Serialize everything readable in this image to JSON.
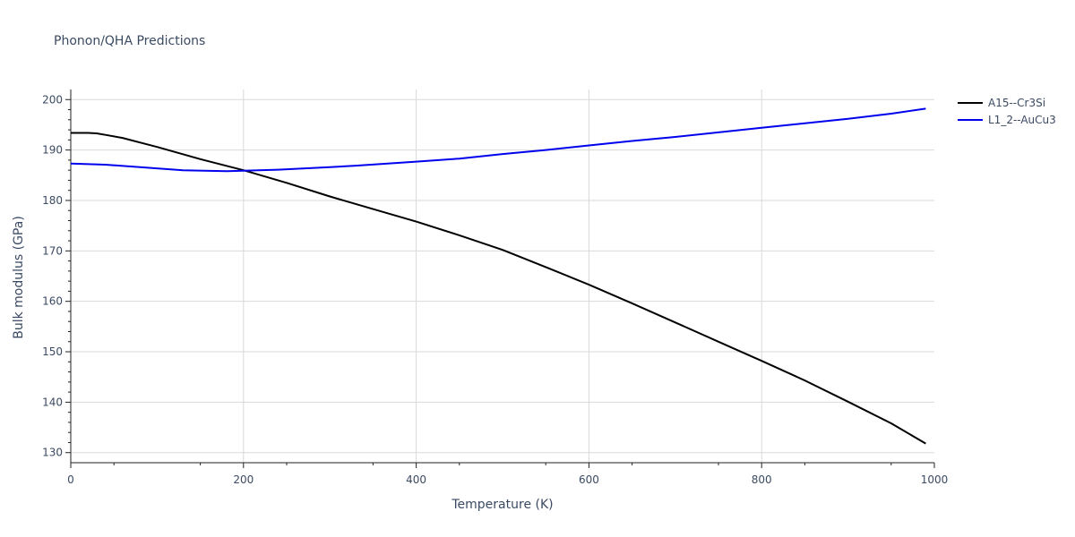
{
  "chart_data": {
    "type": "line",
    "title": "Phonon/QHA Predictions",
    "xlabel": "Temperature (K)",
    "ylabel": "Bulk modulus (GPa)",
    "xlim": [
      0,
      1000
    ],
    "ylim": [
      128,
      202
    ],
    "xticks": [
      0,
      200,
      400,
      600,
      800,
      1000
    ],
    "yticks": [
      130,
      140,
      150,
      160,
      170,
      180,
      190,
      200
    ],
    "grid": true,
    "legend_position": "top-right",
    "series": [
      {
        "name": "A15--Cr3Si",
        "color": "#000000",
        "x": [
          0,
          20,
          30,
          40,
          60,
          80,
          100,
          150,
          200,
          250,
          300,
          350,
          400,
          450,
          500,
          550,
          600,
          650,
          700,
          750,
          800,
          850,
          900,
          950,
          990
        ],
        "y": [
          193.4,
          193.4,
          193.3,
          193.0,
          192.4,
          191.5,
          190.6,
          188.2,
          186.0,
          183.5,
          180.8,
          178.3,
          175.8,
          173.1,
          170.2,
          166.8,
          163.3,
          159.6,
          155.8,
          152.0,
          148.2,
          144.3,
          140.1,
          135.8,
          131.8
        ]
      },
      {
        "name": "L1_2--AuCu3",
        "color": "#0000ee",
        "x": [
          0,
          40,
          80,
          130,
          180,
          240,
          300,
          330,
          400,
          450,
          500,
          550,
          600,
          650,
          700,
          750,
          800,
          850,
          900,
          950,
          990
        ],
        "y": [
          187.3,
          187.1,
          186.6,
          186.0,
          185.8,
          186.1,
          186.6,
          186.9,
          187.7,
          188.3,
          189.2,
          190.0,
          190.9,
          191.8,
          192.6,
          193.5,
          194.4,
          195.3,
          196.2,
          197.2,
          198.2
        ]
      }
    ]
  }
}
